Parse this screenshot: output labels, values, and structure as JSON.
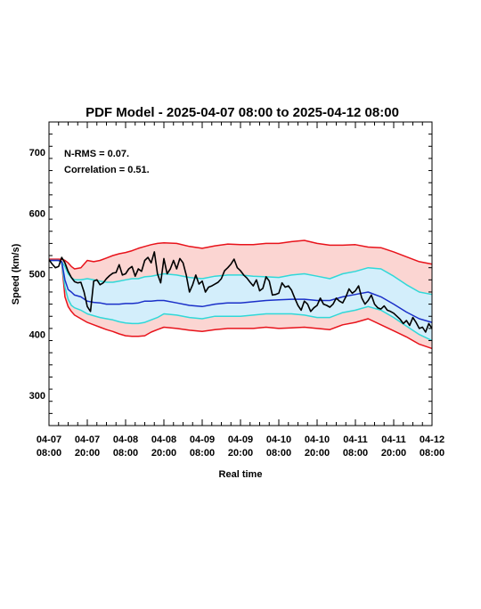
{
  "chart_data": {
    "type": "line",
    "title": "PDF Model - 2025-04-07 08:00 to 2025-04-12 08:00",
    "xlabel": "Real time",
    "ylabel": "Speed (km/s)",
    "xlim": [
      0,
      120
    ],
    "ylim": [
      250,
      750
    ],
    "annotations": [
      "N-RMS = 0.07.",
      "Correlation = 0.51."
    ],
    "yticks": [
      300,
      400,
      500,
      600,
      700
    ],
    "xticks": [
      {
        "x": 0,
        "line1": "04-07",
        "line2": "08:00"
      },
      {
        "x": 12,
        "line1": "04-07",
        "line2": "20:00"
      },
      {
        "x": 24,
        "line1": "04-08",
        "line2": "08:00"
      },
      {
        "x": 36,
        "line1": "04-08",
        "line2": "20:00"
      },
      {
        "x": 48,
        "line1": "04-09",
        "line2": "08:00"
      },
      {
        "x": 60,
        "line1": "04-09",
        "line2": "20:00"
      },
      {
        "x": 72,
        "line1": "04-10",
        "line2": "08:00"
      },
      {
        "x": 84,
        "line1": "04-10",
        "line2": "20:00"
      },
      {
        "x": 96,
        "line1": "04-11",
        "line2": "08:00"
      },
      {
        "x": 108,
        "line1": "04-11",
        "line2": "20:00"
      },
      {
        "x": 120,
        "line1": "04-12",
        "line2": "08:00"
      }
    ],
    "colors": {
      "outer_fill": "#fbd5d2",
      "inner_fill": "#d3eefb",
      "outer_line": "#e8131b",
      "inner_line": "#30d8d8",
      "median_line": "#1a2fc8",
      "observed_line": "#000000"
    },
    "series": [
      {
        "role": "outer_upper",
        "color": "#e8131b",
        "x": [
          0,
          1,
          2,
          3,
          4,
          5,
          6,
          7,
          8,
          10,
          12,
          14,
          16,
          18,
          20,
          22,
          24,
          26,
          28,
          30,
          32,
          34,
          36,
          40,
          44,
          48,
          52,
          56,
          60,
          64,
          68,
          72,
          76,
          80,
          84,
          88,
          92,
          96,
          100,
          104,
          108,
          112,
          116,
          120
        ],
        "y": [
          524,
          524,
          524,
          524,
          524,
          522,
          518,
          512,
          508,
          510,
          522,
          520,
          522,
          526,
          530,
          533,
          535,
          538,
          542,
          545,
          548,
          550,
          551,
          550,
          545,
          542,
          546,
          549,
          548,
          548,
          550,
          550,
          553,
          555,
          550,
          547,
          547,
          548,
          544,
          543,
          536,
          528,
          520,
          516
        ]
      },
      {
        "role": "inner_upper",
        "color": "#30d8d8",
        "x": [
          0,
          1,
          2,
          3,
          4,
          5,
          6,
          7,
          8,
          10,
          12,
          14,
          16,
          18,
          20,
          22,
          24,
          26,
          28,
          30,
          32,
          34,
          36,
          40,
          44,
          48,
          52,
          56,
          60,
          64,
          68,
          72,
          76,
          80,
          84,
          88,
          92,
          96,
          100,
          104,
          108,
          112,
          116,
          120
        ],
        "y": [
          522,
          522,
          522,
          522,
          520,
          512,
          500,
          494,
          490,
          490,
          492,
          490,
          488,
          486,
          486,
          488,
          490,
          492,
          492,
          495,
          496,
          498,
          500,
          498,
          494,
          492,
          496,
          498,
          498,
          496,
          495,
          494,
          498,
          500,
          496,
          492,
          500,
          504,
          510,
          508,
          496,
          482,
          470,
          466
        ]
      },
      {
        "role": "median",
        "color": "#1a2fc8",
        "x": [
          0,
          1,
          2,
          3,
          4,
          5,
          6,
          7,
          8,
          10,
          12,
          14,
          16,
          18,
          20,
          22,
          24,
          26,
          28,
          30,
          32,
          34,
          36,
          40,
          44,
          48,
          52,
          56,
          60,
          64,
          68,
          72,
          76,
          80,
          84,
          88,
          92,
          96,
          100,
          104,
          108,
          112,
          116,
          120
        ],
        "y": [
          522,
          522,
          522,
          522,
          520,
          490,
          474,
          470,
          465,
          462,
          455,
          453,
          452,
          450,
          450,
          450,
          451,
          451,
          452,
          455,
          455,
          456,
          456,
          452,
          448,
          446,
          450,
          452,
          452,
          454,
          456,
          457,
          458,
          458,
          456,
          456,
          462,
          466,
          470,
          462,
          450,
          437,
          426,
          420
        ]
      },
      {
        "role": "inner_lower",
        "color": "#30d8d8",
        "x": [
          0,
          1,
          2,
          3,
          4,
          5,
          6,
          7,
          8,
          10,
          12,
          14,
          16,
          18,
          20,
          22,
          24,
          26,
          28,
          30,
          32,
          34,
          36,
          40,
          44,
          48,
          52,
          56,
          60,
          64,
          68,
          72,
          76,
          80,
          84,
          88,
          92,
          96,
          100,
          104,
          108,
          112,
          116,
          120
        ],
        "y": [
          522,
          522,
          522,
          522,
          518,
          478,
          458,
          448,
          444,
          440,
          434,
          431,
          428,
          426,
          424,
          421,
          419,
          418,
          418,
          420,
          424,
          428,
          434,
          432,
          428,
          426,
          430,
          430,
          430,
          432,
          434,
          434,
          434,
          432,
          428,
          428,
          436,
          440,
          446,
          440,
          428,
          414,
          400,
          390
        ]
      },
      {
        "role": "outer_lower",
        "color": "#e8131b",
        "x": [
          0,
          1,
          2,
          3,
          4,
          5,
          6,
          7,
          8,
          10,
          12,
          14,
          16,
          18,
          20,
          22,
          24,
          26,
          28,
          30,
          32,
          34,
          36,
          40,
          44,
          48,
          52,
          56,
          60,
          64,
          68,
          72,
          76,
          80,
          84,
          88,
          92,
          96,
          100,
          104,
          108,
          112,
          116,
          120
        ],
        "y": [
          522,
          522,
          522,
          522,
          518,
          462,
          446,
          438,
          432,
          426,
          420,
          416,
          412,
          408,
          405,
          401,
          398,
          397,
          397,
          398,
          404,
          408,
          412,
          410,
          407,
          405,
          408,
          410,
          410,
          410,
          412,
          410,
          411,
          412,
          410,
          408,
          416,
          420,
          426,
          416,
          406,
          396,
          384,
          377
        ]
      },
      {
        "role": "observed",
        "color": "#000000",
        "x": [
          0,
          1,
          2,
          3,
          4,
          5,
          6,
          7,
          8,
          9,
          10,
          11,
          12,
          13,
          14,
          15,
          16,
          17,
          18,
          19,
          20,
          21,
          22,
          23,
          24,
          25,
          26,
          27,
          28,
          29,
          30,
          31,
          32,
          33,
          34,
          35,
          36,
          37,
          38,
          39,
          40,
          41,
          42,
          43,
          44,
          45,
          46,
          47,
          48,
          49,
          50,
          51,
          52,
          53,
          54,
          55,
          56,
          57,
          58,
          59,
          60,
          61,
          62,
          63,
          64,
          65,
          66,
          67,
          68,
          69,
          70,
          71,
          72,
          73,
          74,
          75,
          76,
          77,
          78,
          79,
          80,
          81,
          82,
          83,
          84,
          85,
          86,
          87,
          88,
          89,
          90,
          91,
          92,
          93,
          94,
          95,
          96,
          97,
          98,
          99,
          100,
          101,
          102,
          103,
          104,
          105,
          106,
          107,
          108,
          109,
          110,
          111,
          112,
          113,
          114,
          115,
          116,
          117,
          118,
          119,
          120
        ],
        "y": [
          523,
          516,
          510,
          512,
          527,
          518,
          504,
          494,
          487,
          485,
          486,
          470,
          446,
          438,
          488,
          490,
          482,
          485,
          492,
          497,
          501,
          502,
          515,
          498,
          500,
          508,
          512,
          496,
          508,
          504,
          522,
          527,
          518,
          536,
          500,
          485,
          525,
          500,
          508,
          522,
          508,
          525,
          518,
          498,
          470,
          482,
          498,
          483,
          488,
          470,
          478,
          480,
          483,
          486,
          492,
          505,
          510,
          516,
          524,
          510,
          505,
          498,
          493,
          486,
          480,
          490,
          472,
          476,
          495,
          488,
          465,
          466,
          468,
          485,
          478,
          480,
          473,
          460,
          448,
          440,
          455,
          450,
          438,
          444,
          448,
          460,
          450,
          448,
          445,
          450,
          460,
          455,
          452,
          462,
          475,
          468,
          472,
          480,
          460,
          450,
          456,
          465,
          450,
          444,
          442,
          447,
          440,
          438,
          435,
          430,
          425,
          418,
          423,
          415,
          428,
          420,
          410,
          412,
          404,
          418,
          410
        ]
      }
    ]
  }
}
